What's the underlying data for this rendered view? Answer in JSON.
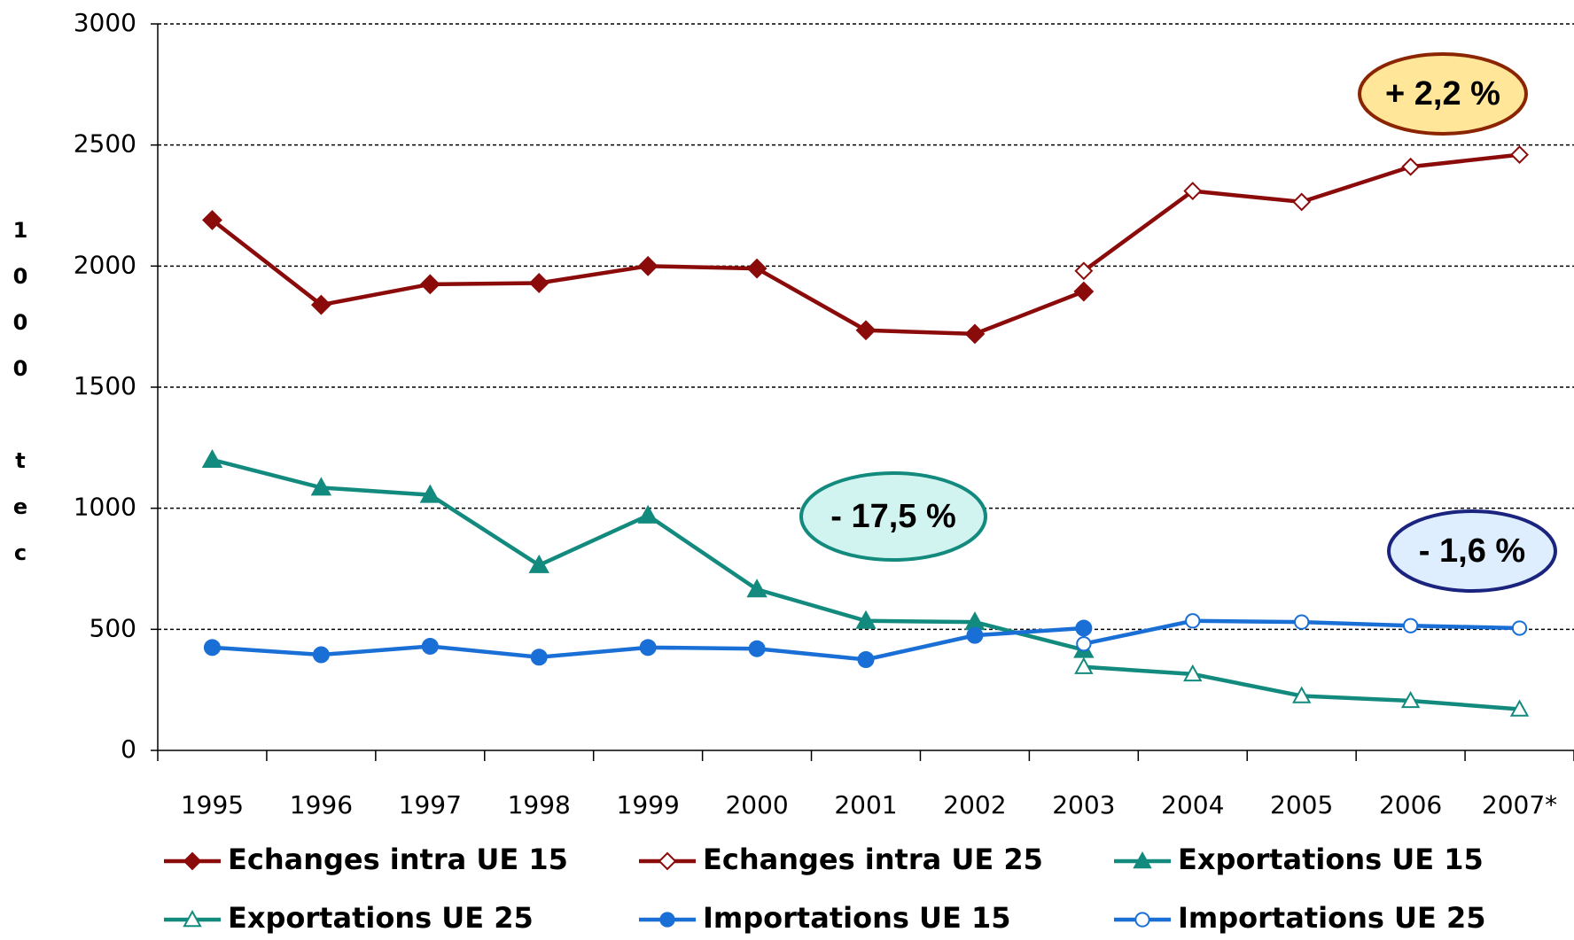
{
  "chart_data": {
    "type": "line",
    "y_label": "1000 tec",
    "categories": [
      "1995",
      "1996",
      "1997",
      "1998",
      "1999",
      "2000",
      "2001",
      "2002",
      "2003",
      "2004",
      "2005",
      "2006",
      "2007*"
    ],
    "ylim": [
      0,
      3000
    ],
    "yticks": [
      0,
      500,
      1000,
      1500,
      2000,
      2500,
      3000
    ],
    "grid": true,
    "series": [
      {
        "name": "Echanges intra UE 15",
        "color": "#8b0a0a",
        "marker": "diamond",
        "filled": true,
        "values": [
          2190,
          1840,
          1925,
          1930,
          2000,
          1990,
          1735,
          1720,
          1895,
          null,
          null,
          null,
          null
        ]
      },
      {
        "name": "Echanges intra UE 25",
        "color": "#8b0a0a",
        "marker": "diamond",
        "filled": false,
        "values": [
          null,
          null,
          null,
          null,
          null,
          null,
          null,
          null,
          1980,
          2310,
          2265,
          2410,
          2460
        ]
      },
      {
        "name": "Exportations UE 15",
        "color": "#138a7e",
        "marker": "triangle",
        "filled": true,
        "values": [
          1200,
          1085,
          1055,
          765,
          970,
          665,
          535,
          530,
          415,
          null,
          null,
          null,
          null
        ]
      },
      {
        "name": "Exportations UE 25",
        "color": "#138a7e",
        "marker": "triangle",
        "filled": false,
        "values": [
          null,
          null,
          null,
          null,
          null,
          null,
          null,
          null,
          345,
          315,
          225,
          205,
          170
        ]
      },
      {
        "name": "Importations UE 15",
        "color": "#1a6fd6",
        "marker": "circle",
        "filled": true,
        "values": [
          425,
          395,
          430,
          385,
          425,
          420,
          375,
          475,
          505,
          null,
          null,
          null,
          null
        ]
      },
      {
        "name": "Importations UE 25",
        "color": "#1a6fd6",
        "marker": "circle",
        "filled": false,
        "values": [
          null,
          null,
          null,
          null,
          null,
          null,
          null,
          null,
          440,
          535,
          530,
          515,
          505
        ]
      }
    ],
    "annotations": [
      {
        "text": "+ 2,2 %",
        "fill": "#ffe699",
        "stroke": "#8b2500"
      },
      {
        "text": "- 17,5 %",
        "fill": "#d2f4f1",
        "stroke": "#138a7e"
      },
      {
        "text": "- 1,6 %",
        "fill": "#deeeff",
        "stroke": "#1a237e"
      }
    ]
  }
}
